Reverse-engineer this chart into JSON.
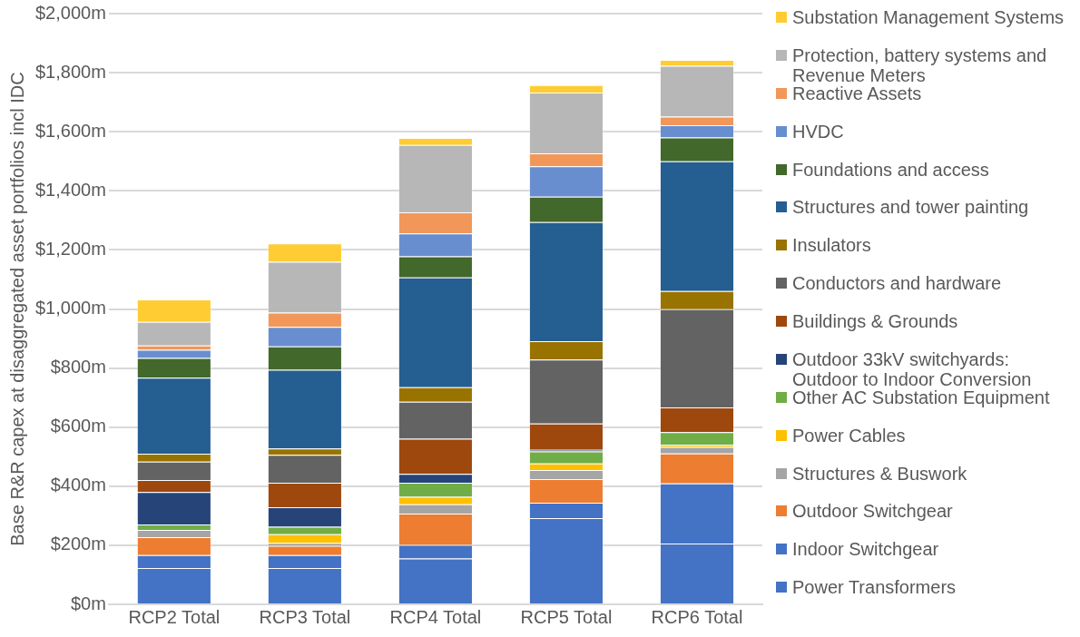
{
  "chart_data": {
    "type": "bar",
    "stacked": true,
    "ylabel": "Base R&R capex at disaggregated asset portfolios incl IDC",
    "categories": [
      "RCP2 Total",
      "RCP3 Total",
      "RCP4 Total",
      "RCP5 Total",
      "RCP6 Total"
    ],
    "ylim": [
      0,
      2000
    ],
    "yticks": [
      {
        "value": 0,
        "label": "$0m"
      },
      {
        "value": 200,
        "label": "$200m"
      },
      {
        "value": 400,
        "label": "$400m"
      },
      {
        "value": 600,
        "label": "$600m"
      },
      {
        "value": 800,
        "label": "$800m"
      },
      {
        "value": 1000,
        "label": "$1,000m"
      },
      {
        "value": 1200,
        "label": "$1,200m"
      },
      {
        "value": 1400,
        "label": "$1,400m"
      },
      {
        "value": 1600,
        "label": "$1,600m"
      },
      {
        "value": 1800,
        "label": "$1,800m"
      },
      {
        "value": 2000,
        "label": "$2,000m"
      }
    ],
    "grid": "y",
    "legend": "right",
    "series": [
      {
        "name": "Power Transformers",
        "color": "#4472c4",
        "values": [
          123,
          123,
          155,
          292,
          206
        ]
      },
      {
        "name": "Indoor Switchgear",
        "color": "#4472c4",
        "values": [
          44,
          44,
          46,
          52,
          203
        ]
      },
      {
        "name": "Outdoor Switchgear",
        "color": "#ed7d31",
        "values": [
          60,
          31,
          106,
          80,
          102
        ]
      },
      {
        "name": "Structures & Buswork",
        "color": "#a5a5a5",
        "values": [
          25,
          10,
          32,
          31,
          22
        ]
      },
      {
        "name": "Power Cables",
        "color": "#ffc000",
        "values": [
          0,
          29,
          25,
          22,
          8
        ]
      },
      {
        "name": "Other AC Substation Equipment",
        "color": "#70ad47",
        "values": [
          18,
          26,
          48,
          41,
          42
        ]
      },
      {
        "name": "Outdoor 33kV switchyards: Outdoor to Indoor Conversion",
        "color": "#264478",
        "values": [
          110,
          66,
          30,
          5,
          0
        ]
      },
      {
        "name": "Buildings & Grounds",
        "color": "#9e480e",
        "values": [
          41,
          83,
          119,
          89,
          84
        ]
      },
      {
        "name": "Conductors and hardware",
        "color": "#636363",
        "values": [
          62,
          94,
          125,
          217,
          332
        ]
      },
      {
        "name": "Insulators",
        "color": "#997300",
        "values": [
          27,
          22,
          49,
          62,
          62
        ]
      },
      {
        "name": "Structures and tower painting",
        "color": "#255e91",
        "values": [
          257,
          266,
          372,
          403,
          439
        ]
      },
      {
        "name": "Foundations and access",
        "color": "#43682b",
        "values": [
          67,
          79,
          71,
          86,
          81
        ]
      },
      {
        "name": "HVDC",
        "color": "#698ed0",
        "values": [
          28,
          66,
          78,
          103,
          41
        ]
      },
      {
        "name": "Reactive Assets",
        "color": "#f1975a",
        "values": [
          14,
          49,
          71,
          44,
          29
        ]
      },
      {
        "name": "Protection, battery systems and Revenue Meters",
        "color": "#b7b7b7",
        "values": [
          80,
          172,
          228,
          206,
          172
        ]
      },
      {
        "name": "Substation Management Systems",
        "color": "#ffcd33",
        "values": [
          76,
          62,
          24,
          25,
          20
        ]
      }
    ]
  }
}
